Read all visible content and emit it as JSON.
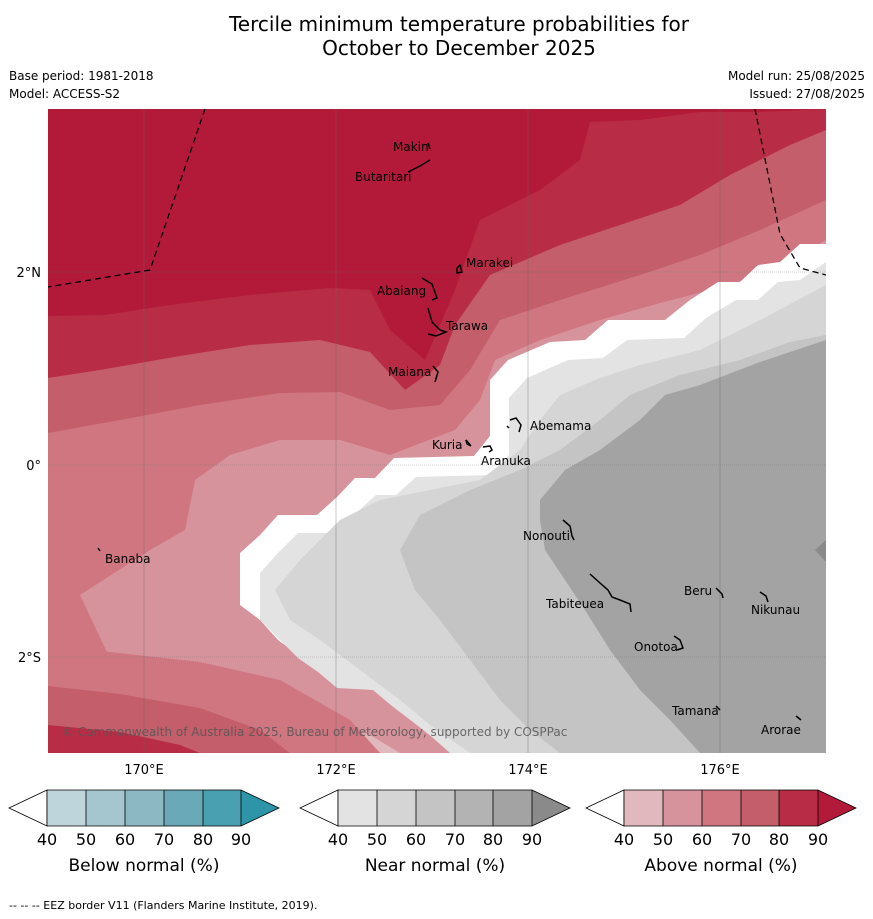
{
  "title_line1": "Tercile minimum temperature probabilities for",
  "title_line2": "October to December 2025",
  "base_period": "Base period: 1981-2018",
  "model": "Model: ACCESS-S2",
  "model_run": "Model run: 25/08/2025",
  "issued": "Issued: 27/08/2025",
  "copyright": "© Commonwealth of Australia 2025, Bureau of Meteorology, supported by COSPPac",
  "footnote": "-- -- -- EEZ border V11 (Flanders Marine Institute, 2019).",
  "lon_labels": [
    "170°E",
    "172°E",
    "174°E",
    "176°E"
  ],
  "lat_labels": [
    "2°N",
    "0°",
    "2°S"
  ],
  "places": {
    "makin": "Makin",
    "butaritari": "Butaritari",
    "marakei": "Marakei",
    "abaiang": "Abaiang",
    "tarawa": "Tarawa",
    "maiana": "Maiana",
    "abemama": "Abemama",
    "kuria": "Kuria",
    "aranuka": "Aranuka",
    "banaba": "Banaba",
    "nonouti": "Nonouti",
    "beru": "Beru",
    "nikunau": "Nikunau",
    "tabiteuea": "Tabiteuea",
    "onotoa": "Onotoa",
    "tamana": "Tamana",
    "arorae": "Arorae"
  },
  "colorbars": [
    {
      "label": "Below normal (%)",
      "ticks": [
        "40",
        "50",
        "60",
        "70",
        "80",
        "90"
      ],
      "colors": [
        "#bfd5dc",
        "#a5c6cf",
        "#8cb8c4",
        "#6aaab8",
        "#48a0b0",
        "#2e95a8"
      ]
    },
    {
      "label": "Near normal (%)",
      "ticks": [
        "40",
        "50",
        "60",
        "70",
        "80",
        "90"
      ],
      "colors": [
        "#e3e3e3",
        "#d5d5d5",
        "#c4c4c4",
        "#b3b3b3",
        "#a3a3a3",
        "#8a8a8a"
      ]
    },
    {
      "label": "Above normal (%)",
      "ticks": [
        "40",
        "50",
        "60",
        "70",
        "80",
        "90"
      ],
      "colors": [
        "#e0b8be",
        "#d7939c",
        "#cf7680",
        "#c45e6b",
        "#b82d45",
        "#b31a3a"
      ]
    }
  ]
}
